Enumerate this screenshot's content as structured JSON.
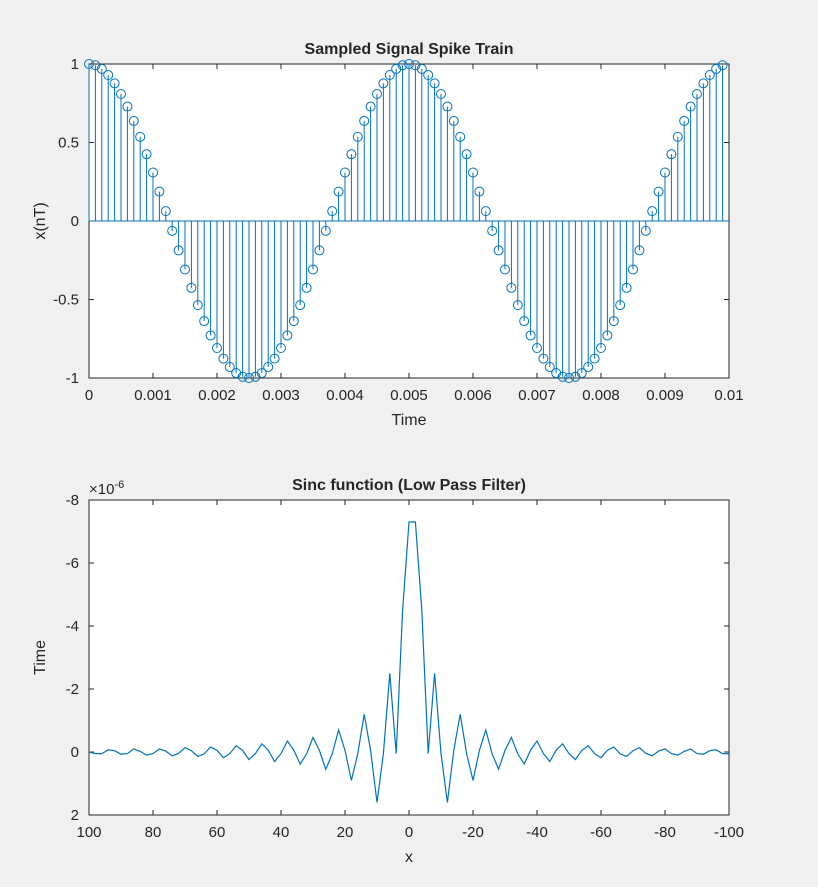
{
  "chart_data": [
    {
      "type": "stem",
      "title": "Sampled Signal Spike Train",
      "xlabel": "Time",
      "ylabel": "x(nT)",
      "xlim": [
        0,
        0.01
      ],
      "ylim": [
        -1,
        1
      ],
      "x_ticks": [
        "0",
        "0.001",
        "0.002",
        "0.003",
        "0.004",
        "0.005",
        "0.006",
        "0.007",
        "0.008",
        "0.009",
        "0.01"
      ],
      "y_ticks": [
        "-1",
        "-0.5",
        "0",
        "0.5",
        "1"
      ],
      "grid": false,
      "color": "#0072BD",
      "sample_period": 0.0001,
      "num_samples": 100,
      "frequency_hz": 200,
      "series": [
        {
          "name": "",
          "expression": "cos(2*pi*200*t)",
          "x_start": 0,
          "x_step": 0.0001,
          "count": 100
        }
      ]
    },
    {
      "type": "line",
      "title": "Sinc function (Low Pass Filter)",
      "xlabel": "x",
      "ylabel": "Time",
      "exponent_label": "×10",
      "exponent_power": "-6",
      "xlim": [
        100,
        -100
      ],
      "ylim": [
        -8,
        2
      ],
      "x_reversed": true,
      "y_reversed": true,
      "x_ticks": [
        "100",
        "80",
        "60",
        "40",
        "20",
        "0",
        "-20",
        "-40",
        "-60",
        "-80",
        "-100"
      ],
      "y_ticks": [
        "-8",
        "-6",
        "-4",
        "-2",
        "0",
        "2"
      ],
      "grid": false,
      "color": "#0072BD",
      "y_unit_scale": 1e-06,
      "x": [
        -100,
        -98,
        -96,
        -94,
        -92,
        -90,
        -88,
        -86,
        -84,
        -82,
        -80,
        -78,
        -76,
        -74,
        -72,
        -70,
        -68,
        -66,
        -64,
        -62,
        -60,
        -58,
        -56,
        -54,
        -52,
        -50,
        -48,
        -46,
        -44,
        -42,
        -40,
        -38,
        -36,
        -34,
        -32,
        -30,
        -28,
        -26,
        -24,
        -22,
        -20,
        -18,
        -16,
        -14,
        -12,
        -10,
        -8,
        -6,
        -4,
        -2,
        0,
        2,
        4,
        6,
        8,
        10,
        12,
        14,
        16,
        18,
        20,
        22,
        24,
        26,
        28,
        30,
        32,
        34,
        36,
        38,
        40,
        42,
        44,
        46,
        48,
        50,
        52,
        54,
        56,
        58,
        60,
        62,
        64,
        66,
        68,
        70,
        72,
        74,
        76,
        78,
        80,
        82,
        84,
        86,
        88,
        90,
        92,
        94,
        96,
        98,
        100
      ],
      "series": [
        {
          "name": "",
          "values": [
            0.05,
            0.05,
            -0.07,
            -0.04,
            0.07,
            0.05,
            -0.1,
            -0.02,
            0.1,
            0.05,
            -0.1,
            -0.03,
            0.12,
            0.04,
            -0.14,
            -0.04,
            0.14,
            0.06,
            -0.16,
            -0.05,
            0.18,
            0.05,
            -0.2,
            -0.05,
            0.24,
            0.05,
            -0.26,
            -0.06,
            0.3,
            0.05,
            -0.35,
            -0.06,
            0.38,
            0.06,
            -0.46,
            -0.05,
            0.55,
            0.06,
            -0.7,
            -0.05,
            0.9,
            0.05,
            -1.2,
            -0.05,
            1.6,
            0.05,
            -2.5,
            0.05,
            -4.5,
            -7.3,
            -7.3,
            -4.5,
            0.05,
            -2.5,
            0.05,
            1.6,
            -0.05,
            -1.2,
            0.05,
            0.9,
            -0.05,
            -0.7,
            0.06,
            0.55,
            -0.05,
            -0.46,
            0.06,
            0.38,
            -0.06,
            -0.35,
            0.05,
            0.3,
            -0.06,
            -0.26,
            0.05,
            0.24,
            -0.05,
            -0.2,
            0.05,
            0.18,
            -0.05,
            -0.16,
            0.06,
            0.14,
            -0.04,
            -0.14,
            0.04,
            0.12,
            -0.03,
            -0.1,
            0.05,
            0.1,
            -0.02,
            -0.1,
            0.05,
            0.07,
            -0.04,
            -0.07,
            0.05,
            0.05,
            0.0
          ]
        }
      ]
    }
  ]
}
